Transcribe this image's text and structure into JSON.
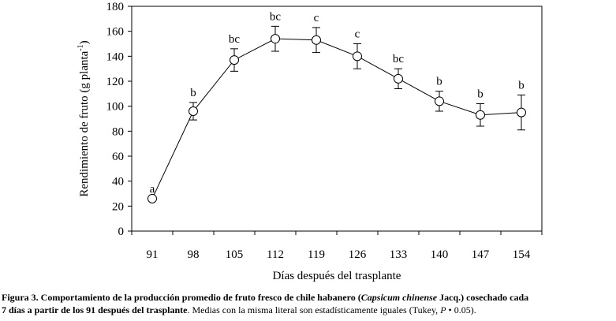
{
  "chart_data": {
    "type": "line",
    "xlabel": "Días después del trasplante",
    "ylabel_main": "Rendimiento de fruto (g planta",
    "ylabel_sup": "-1",
    "ylabel_end": ")",
    "ylim": [
      0,
      180
    ],
    "yticks": [
      0,
      20,
      40,
      60,
      80,
      100,
      120,
      140,
      160,
      180
    ],
    "categories": [
      "91",
      "98",
      "105",
      "112",
      "119",
      "126",
      "133",
      "140",
      "147",
      "154"
    ],
    "x": [
      91,
      98,
      105,
      112,
      119,
      126,
      133,
      140,
      147,
      154
    ],
    "values": [
      26,
      96,
      137,
      154,
      153,
      140,
      122,
      104,
      93,
      95
    ],
    "error": [
      null,
      7,
      9,
      10,
      10,
      10,
      8,
      8,
      9,
      14
    ],
    "letters": [
      "a",
      "b",
      "bc",
      "bc",
      "c",
      "c",
      "bc",
      "b",
      "b",
      "b"
    ],
    "grid": false
  },
  "caption": {
    "line1_bold_a": "Figura 3. Comportamiento de la producción promedio de fruto fresco de chile habanero (",
    "line1_italic": "Capsicum chinense",
    "line1_bold_b": " Jacq.) cosechado cada",
    "line2_bold": "7 días a partir de los 91 después del trasplante",
    "line2_normal_a": ". Medias con la misma literal son estadísticamente iguales (Tukey, ",
    "line2_italic": "P",
    "line2_normal_b": " •    0.05)."
  }
}
